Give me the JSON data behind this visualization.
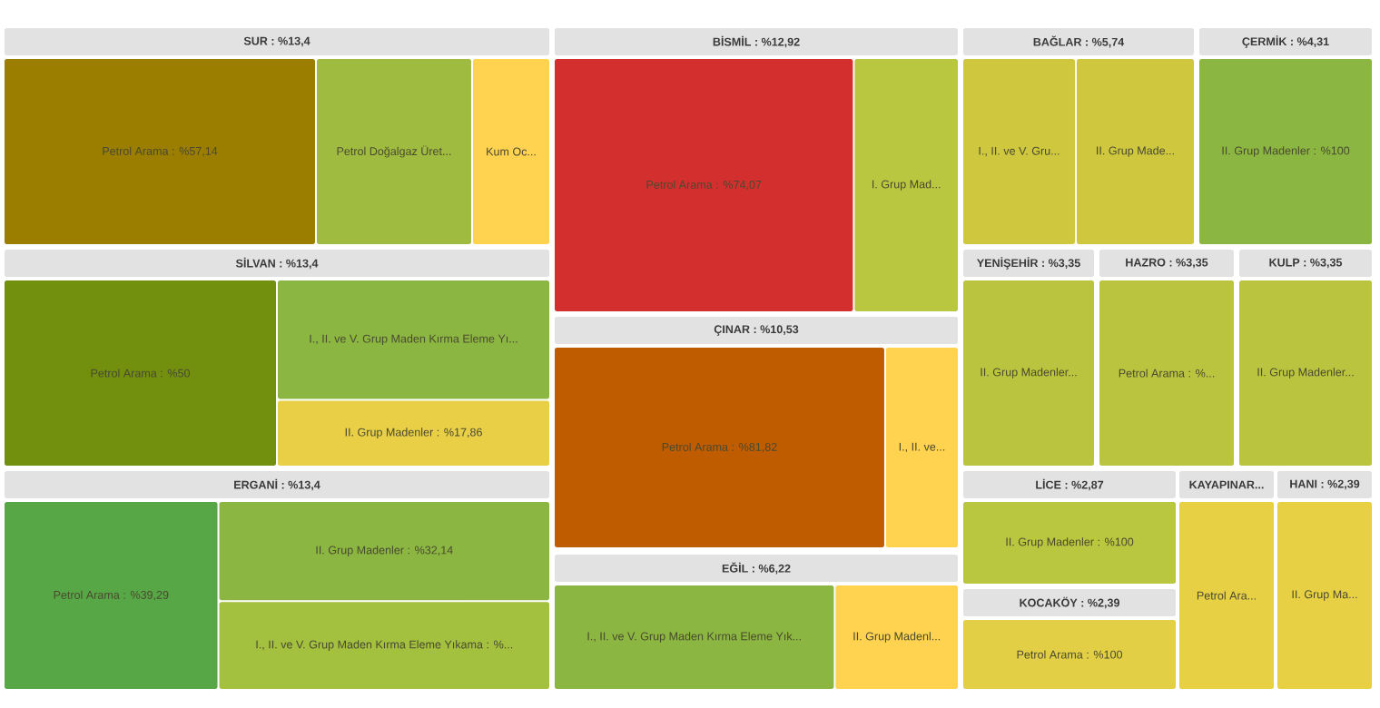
{
  "chart_data": [
    {
      "type": "other",
      "title": "SUR : %13,4",
      "categories": [
        "Petrol Arama",
        "Petrol Doğalgaz Üret...",
        "Kum Oc..."
      ],
      "values": [
        57.14,
        null,
        null
      ],
      "value_labels": [
        ": %57,14",
        null,
        null
      ],
      "colors": [
        "#9b7d00",
        "#a0bc40",
        "#ffd24f"
      ]
    },
    {
      "type": "other",
      "title": "SİLVAN : %13,4",
      "categories": [
        "Petrol Arama",
        "I., II. ve V. Grup Maden Kırma Eleme Yı...",
        "II. Grup Madenler"
      ],
      "values": [
        50,
        null,
        17.86
      ],
      "value_labels": [
        ": %50",
        null,
        ": %17,86"
      ],
      "colors": [
        "#728f0e",
        "#8bb641",
        "#e8cf45"
      ]
    },
    {
      "type": "other",
      "title": "ERGANİ : %13,4",
      "categories": [
        "Petrol Arama",
        "II. Grup Madenler",
        "I., II. ve V. Grup Maden Kırma Eleme Yıkama : %..."
      ],
      "values": [
        39.29,
        32.14,
        null
      ],
      "value_labels": [
        ": %39,29",
        ": %32,14",
        null
      ],
      "colors": [
        "#58a746",
        "#8bb641",
        "#a3c03e"
      ]
    },
    {
      "type": "other",
      "title": "BİSMİL : %12,92",
      "categories": [
        "Petrol Arama",
        "I. Grup Mad..."
      ],
      "values": [
        74.07,
        null
      ],
      "value_labels": [
        ": %74,07",
        null
      ],
      "colors": [
        "#d32f2f",
        "#b9c640"
      ]
    },
    {
      "type": "other",
      "title": "ÇINAR : %10,53",
      "categories": [
        "Petrol Arama",
        "I., II. ve..."
      ],
      "values": [
        81.82,
        null
      ],
      "value_labels": [
        ": %81,82",
        null
      ],
      "colors": [
        "#bf5c00",
        "#ffd24f"
      ]
    },
    {
      "type": "other",
      "title": "EĞİL : %6,22",
      "categories": [
        "I., II. ve V. Grup Maden Kırma Eleme Yık...",
        "II. Grup Madenl..."
      ],
      "colors": [
        "#8bb641",
        "#ffd24f"
      ]
    },
    {
      "type": "other",
      "title": "BAĞLAR : %5,74",
      "categories": [
        "I., II. ve V. Gru...",
        "II. Grup Made..."
      ],
      "colors": [
        "#cfc83f",
        "#cfc83f"
      ]
    },
    {
      "type": "other",
      "title": "ÇERMİK : %4,31",
      "categories": [
        "II. Grup Madenler"
      ],
      "values": [
        100
      ],
      "value_labels": [
        ": %100"
      ],
      "colors": [
        "#8bb641"
      ]
    },
    {
      "type": "other",
      "title": "YENİŞEHİR : %3,35",
      "categories": [
        "II. Grup Madenler..."
      ],
      "colors": [
        "#bbc43e"
      ]
    },
    {
      "type": "other",
      "title": "HAZRO : %3,35",
      "categories": [
        "Petrol Arama : %..."
      ],
      "colors": [
        "#bbc43e"
      ]
    },
    {
      "type": "other",
      "title": "KULP : %3,35",
      "categories": [
        "II. Grup Madenler..."
      ],
      "colors": [
        "#bbc43e"
      ]
    },
    {
      "type": "other",
      "title": "LİCE : %2,87",
      "categories": [
        "II. Grup Madenler"
      ],
      "values": [
        100
      ],
      "value_labels": [
        ": %100"
      ],
      "colors": [
        "#b9c640"
      ]
    },
    {
      "type": "other",
      "title": "KOCAKÖY : %2,39",
      "categories": [
        "Petrol Arama"
      ],
      "values": [
        100
      ],
      "value_labels": [
        ": %100"
      ],
      "colors": [
        "#e3cf45"
      ]
    },
    {
      "type": "other",
      "title": "KAYAPINAR...",
      "categories": [
        "Petrol Ara..."
      ],
      "colors": [
        "#e8d045"
      ]
    },
    {
      "type": "other",
      "title": "HANI : %2,39",
      "categories": [
        "II. Grup Ma..."
      ],
      "colors": [
        "#e8d045"
      ]
    }
  ]
}
